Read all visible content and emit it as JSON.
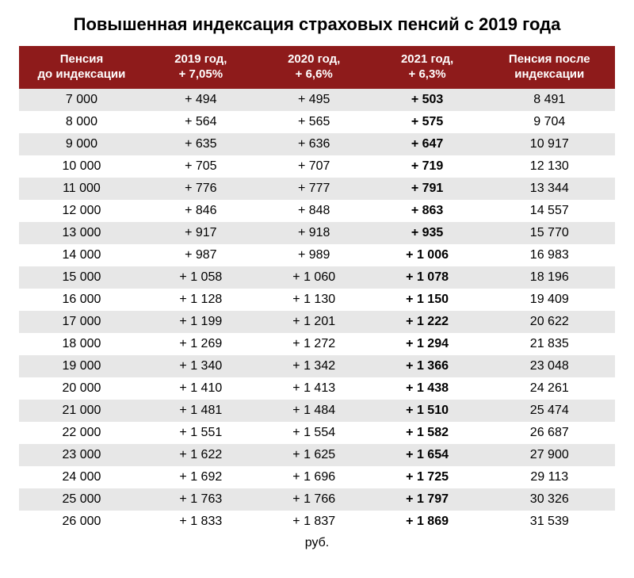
{
  "title": "Повышенная индексация страховых пенсий с 2019 года",
  "title_fontsize": 22,
  "footer_unit": "руб.",
  "footer_fontsize": 16,
  "colors": {
    "header_bg": "#8e1b1b",
    "header_text": "#ffffff",
    "row_even_bg": "#e7e7e7",
    "row_odd_bg": "#ffffff",
    "text": "#000000",
    "page_bg": "#ffffff"
  },
  "typography": {
    "header_fontsize": 15,
    "cell_fontsize": 16,
    "font_family": "Arial, Helvetica, sans-serif"
  },
  "table": {
    "type": "table",
    "column_widths_pct": [
      21,
      19,
      19,
      19,
      22
    ],
    "columns": [
      {
        "line1": "Пенсия",
        "line2": "до индексации"
      },
      {
        "line1": "2019 год,",
        "line2": "+ 7,05%"
      },
      {
        "line1": "2020 год,",
        "line2": "+ 6,6%"
      },
      {
        "line1": "2021 год,",
        "line2": "+ 6,3%"
      },
      {
        "line1": "Пенсия после",
        "line2": "индексации"
      }
    ],
    "bold_column_index": 3,
    "rows": [
      [
        "7 000",
        "+ 494",
        "+ 495",
        "+ 503",
        "8 491"
      ],
      [
        "8 000",
        "+ 564",
        "+ 565",
        "+ 575",
        "9 704"
      ],
      [
        "9 000",
        "+ 635",
        "+ 636",
        "+ 647",
        "10 917"
      ],
      [
        "10 000",
        "+ 705",
        "+ 707",
        "+ 719",
        "12 130"
      ],
      [
        "11 000",
        "+ 776",
        "+ 777",
        "+ 791",
        "13 344"
      ],
      [
        "12 000",
        "+ 846",
        "+ 848",
        "+ 863",
        "14 557"
      ],
      [
        "13 000",
        "+ 917",
        "+ 918",
        "+ 935",
        "15 770"
      ],
      [
        "14 000",
        "+ 987",
        "+ 989",
        "+ 1 006",
        "16 983"
      ],
      [
        "15 000",
        "+ 1 058",
        "+ 1 060",
        "+ 1 078",
        "18 196"
      ],
      [
        "16 000",
        "+ 1 128",
        "+ 1 130",
        "+ 1 150",
        "19 409"
      ],
      [
        "17 000",
        "+ 1 199",
        "+ 1 201",
        "+ 1 222",
        "20 622"
      ],
      [
        "18 000",
        "+ 1 269",
        "+ 1 272",
        "+ 1 294",
        "21 835"
      ],
      [
        "19 000",
        "+ 1 340",
        "+ 1 342",
        "+ 1 366",
        "23 048"
      ],
      [
        "20 000",
        "+ 1 410",
        "+ 1 413",
        "+ 1 438",
        "24 261"
      ],
      [
        "21 000",
        "+ 1 481",
        "+ 1 484",
        "+ 1 510",
        "25 474"
      ],
      [
        "22 000",
        "+ 1 551",
        "+ 1 554",
        "+ 1 582",
        "26 687"
      ],
      [
        "23 000",
        "+ 1 622",
        "+ 1 625",
        "+ 1 654",
        "27 900"
      ],
      [
        "24 000",
        "+ 1 692",
        "+ 1 696",
        "+ 1 725",
        "29 113"
      ],
      [
        "25 000",
        "+ 1 763",
        "+ 1 766",
        "+ 1 797",
        "30 326"
      ],
      [
        "26 000",
        "+ 1 833",
        "+ 1 837",
        "+ 1 869",
        "31 539"
      ]
    ]
  }
}
